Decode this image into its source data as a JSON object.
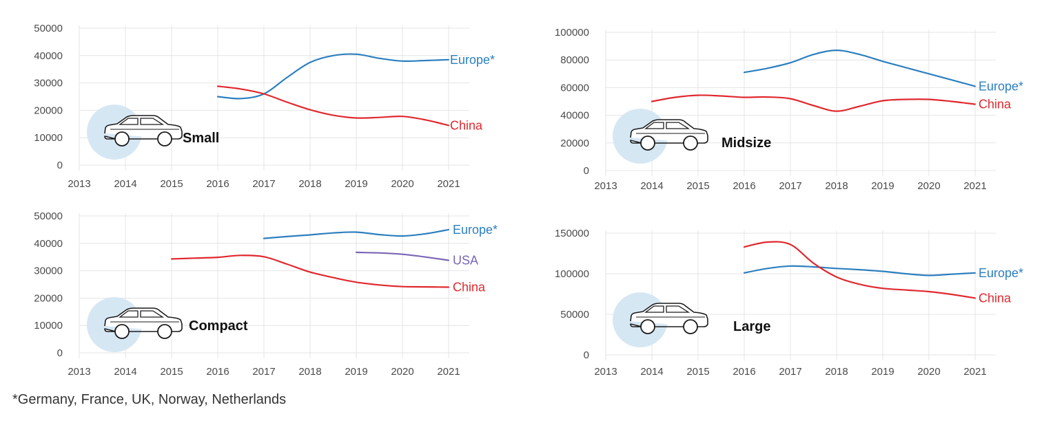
{
  "colors": {
    "Europe*": "#2b7fbf",
    "China": "#e0282e",
    "USA": "#7a65b5",
    "circle": "#d6e7f4",
    "grid": "#e4e4e4"
  },
  "footnote": "*Germany, France, UK, Norway, Netherlands",
  "chart_data": [
    {
      "type": "line",
      "title": "Small",
      "x_ticks": [
        "2013",
        "2014",
        "2015",
        "2016",
        "2017",
        "2018",
        "2019",
        "2020",
        "2021"
      ],
      "y_ticks": [
        "0",
        "10000",
        "20000",
        "30000",
        "40000",
        "50000"
      ],
      "xlim": [
        2013,
        2021
      ],
      "ylim": [
        0,
        50000
      ],
      "series": [
        {
          "name": "Europe*",
          "x": [
            2016,
            2016.5,
            2017,
            2017.5,
            2018,
            2018.5,
            2019,
            2019.5,
            2020,
            2020.5,
            2021
          ],
          "values": [
            25000,
            24300,
            26000,
            32000,
            37500,
            40000,
            40500,
            39000,
            38000,
            38200,
            38500
          ]
        },
        {
          "name": "China",
          "x": [
            2016,
            2016.5,
            2017,
            2017.5,
            2018,
            2018.5,
            2019,
            2019.5,
            2020,
            2020.5,
            2021
          ],
          "values": [
            28800,
            27800,
            26000,
            23000,
            20200,
            18200,
            17200,
            17400,
            17800,
            16500,
            14500
          ]
        }
      ]
    },
    {
      "type": "line",
      "title": "Midsize",
      "x_ticks": [
        "2013",
        "2014",
        "2015",
        "2016",
        "2017",
        "2018",
        "2019",
        "2020",
        "2021"
      ],
      "y_ticks": [
        "0",
        "20000",
        "40000",
        "60000",
        "80000",
        "100000"
      ],
      "xlim": [
        2013,
        2021
      ],
      "ylim": [
        0,
        100000
      ],
      "series": [
        {
          "name": "Europe*",
          "x": [
            2016,
            2016.5,
            2017,
            2017.5,
            2018,
            2018.5,
            2019,
            2019.5,
            2020,
            2020.5,
            2021
          ],
          "values": [
            71000,
            74000,
            78000,
            84000,
            87000,
            84000,
            79000,
            74500,
            70000,
            65500,
            61000
          ]
        },
        {
          "name": "China",
          "x": [
            2014,
            2014.5,
            2015,
            2015.5,
            2016,
            2016.5,
            2017,
            2017.5,
            2018,
            2018.5,
            2019,
            2019.5,
            2020,
            2020.5,
            2021
          ],
          "values": [
            50000,
            53000,
            54500,
            54000,
            53000,
            53200,
            52000,
            47000,
            43000,
            46500,
            50500,
            51500,
            51500,
            50000,
            48000
          ]
        }
      ]
    },
    {
      "type": "line",
      "title": "Compact",
      "x_ticks": [
        "2013",
        "2014",
        "2015",
        "2016",
        "2017",
        "2018",
        "2019",
        "2020",
        "2021"
      ],
      "y_ticks": [
        "0",
        "10000",
        "20000",
        "30000",
        "40000",
        "50000"
      ],
      "xlim": [
        2013,
        2021
      ],
      "ylim": [
        0,
        50000
      ],
      "series": [
        {
          "name": "Europe*",
          "x": [
            2017,
            2017.5,
            2018,
            2018.5,
            2019,
            2019.5,
            2020,
            2020.5,
            2021
          ],
          "values": [
            41800,
            42500,
            43100,
            43800,
            44100,
            43200,
            42700,
            43500,
            45000
          ]
        },
        {
          "name": "USA",
          "x": [
            2019,
            2019.5,
            2020,
            2020.5,
            2021
          ],
          "values": [
            36700,
            36500,
            36000,
            35000,
            33800
          ]
        },
        {
          "name": "China",
          "x": [
            2015,
            2015.5,
            2016,
            2016.5,
            2017,
            2017.5,
            2018,
            2018.5,
            2019,
            2019.5,
            2020,
            2020.5,
            2021
          ],
          "values": [
            34300,
            34600,
            34900,
            35600,
            35100,
            32400,
            29500,
            27500,
            25800,
            24800,
            24200,
            24100,
            24000
          ]
        }
      ]
    },
    {
      "type": "line",
      "title": "Large",
      "x_ticks": [
        "2013",
        "2014",
        "2015",
        "2016",
        "2017",
        "2018",
        "2019",
        "2020",
        "2021"
      ],
      "y_ticks": [
        "0",
        "50000",
        "100000",
        "150000"
      ],
      "xlim": [
        2013,
        2021
      ],
      "ylim": [
        0,
        150000
      ],
      "series": [
        {
          "name": "Europe*",
          "x": [
            2016,
            2016.5,
            2017,
            2017.5,
            2018,
            2018.5,
            2019,
            2019.5,
            2020,
            2020.5,
            2021
          ],
          "values": [
            101000,
            106500,
            109500,
            108500,
            106500,
            105000,
            103000,
            100000,
            98000,
            99500,
            101000
          ]
        },
        {
          "name": "China",
          "x": [
            2016,
            2016.5,
            2017,
            2017.5,
            2018,
            2018.5,
            2019,
            2019.5,
            2020,
            2020.5,
            2021
          ],
          "values": [
            133000,
            139000,
            136000,
            113000,
            96000,
            87000,
            82000,
            80000,
            78000,
            74500,
            70000
          ]
        }
      ]
    }
  ]
}
